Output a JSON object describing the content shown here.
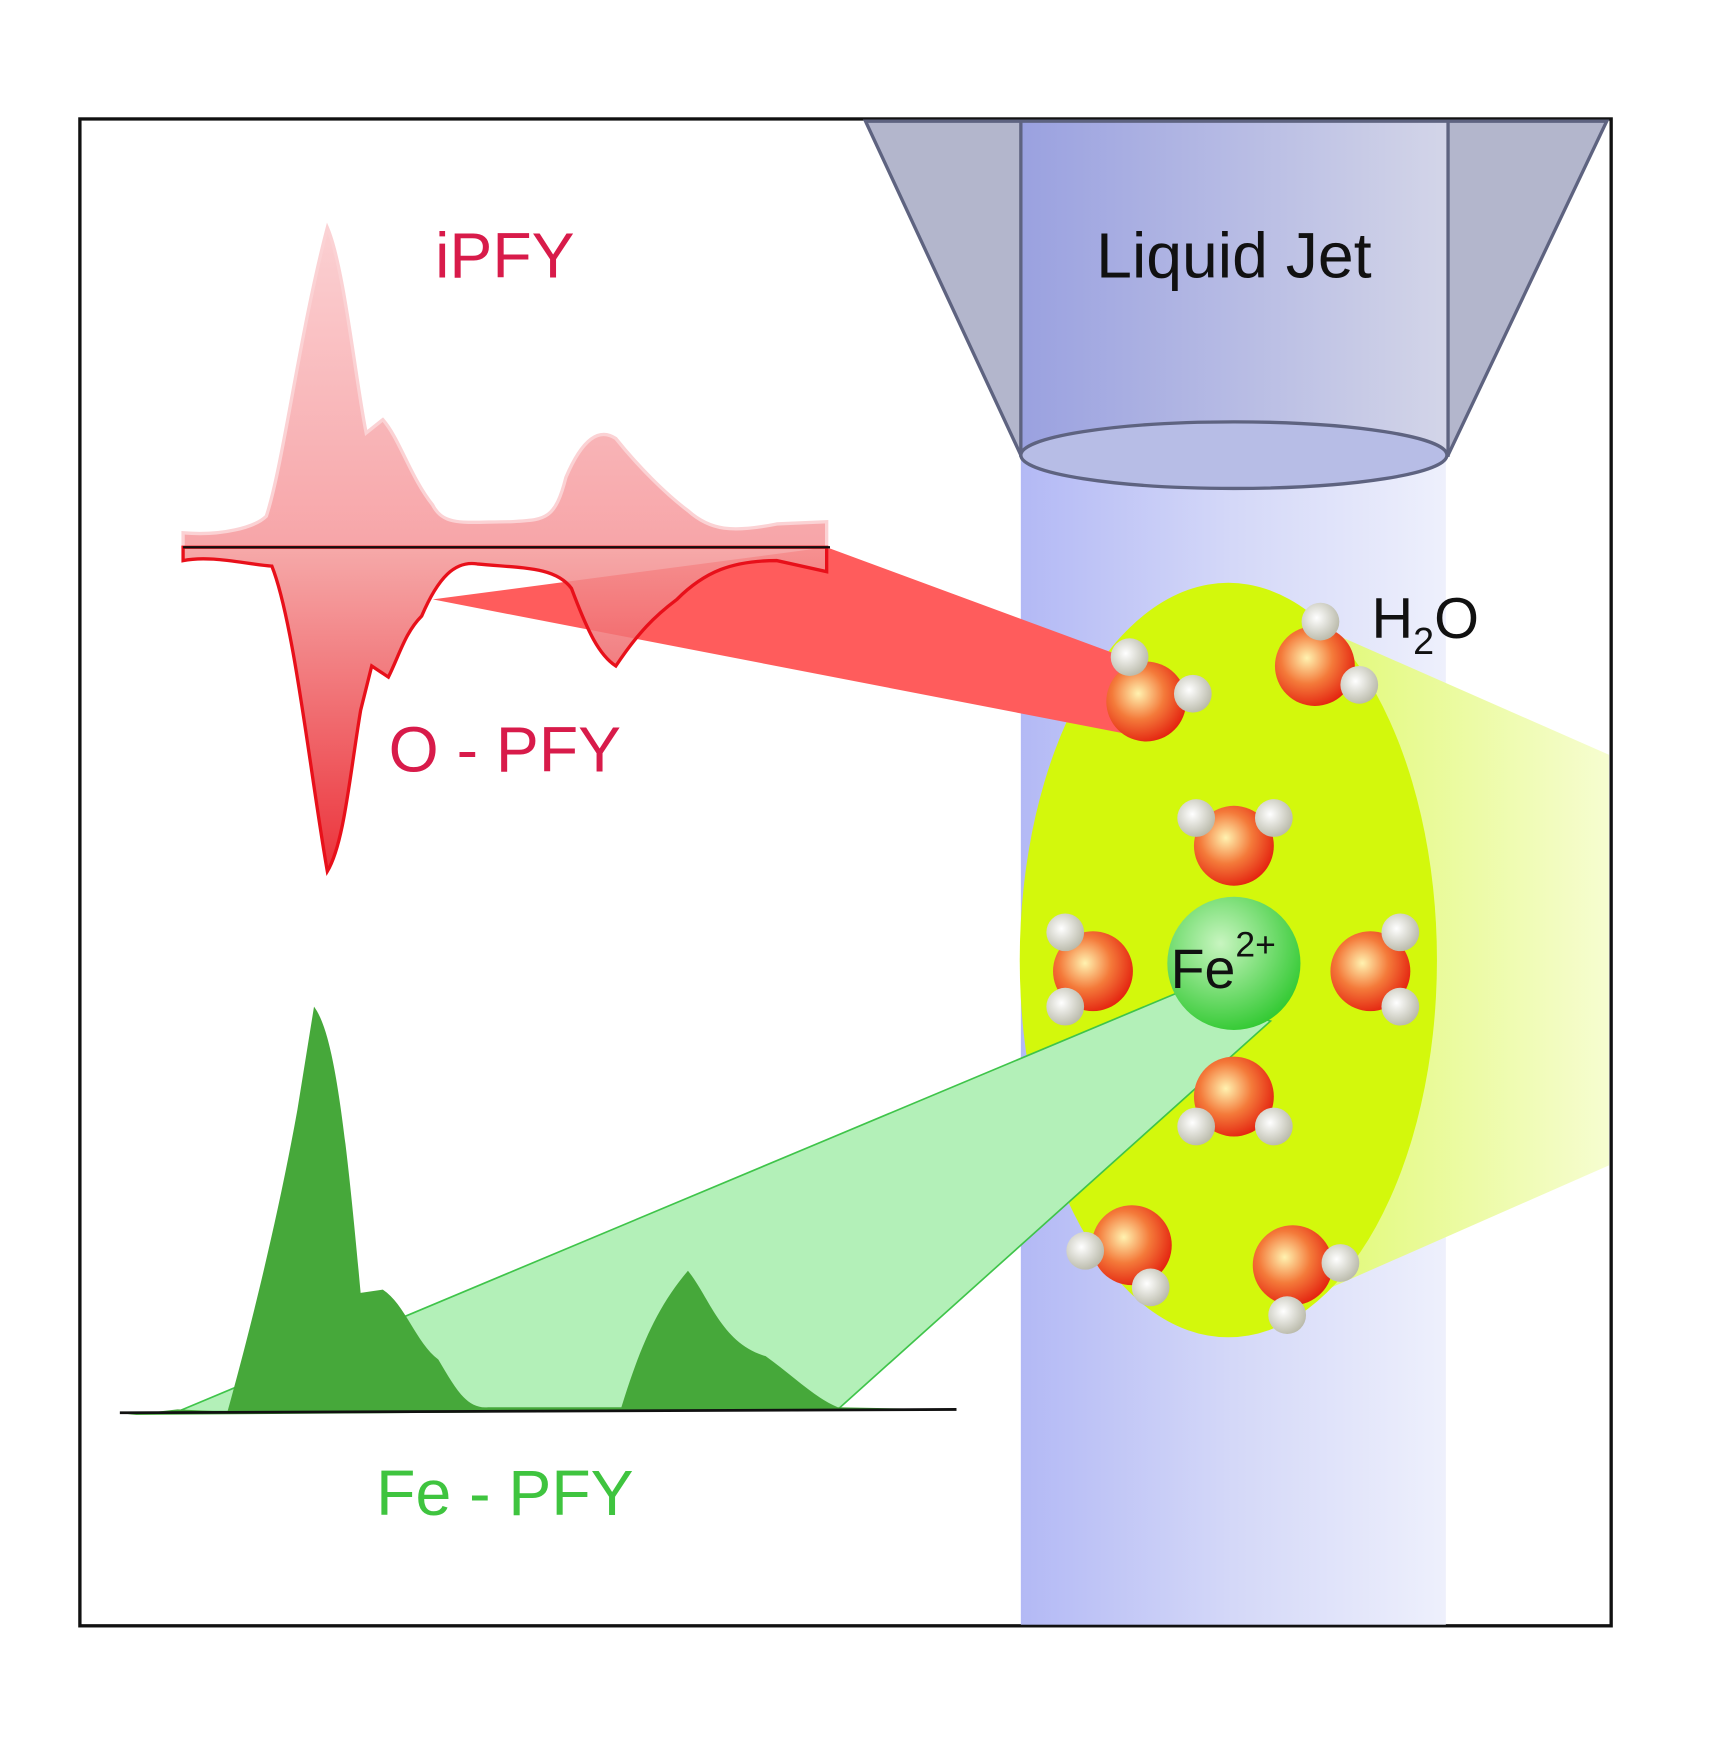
{
  "labels": {
    "ipfy": "iPFY",
    "o_pfy": "O - PFY",
    "fe_pfy": "Fe - PFY",
    "liquid_jet": "Liquid Jet",
    "water": {
      "h": "H",
      "sub": "2",
      "o": "O"
    },
    "ion": {
      "base": "Fe",
      "charge": "2+"
    }
  }
}
